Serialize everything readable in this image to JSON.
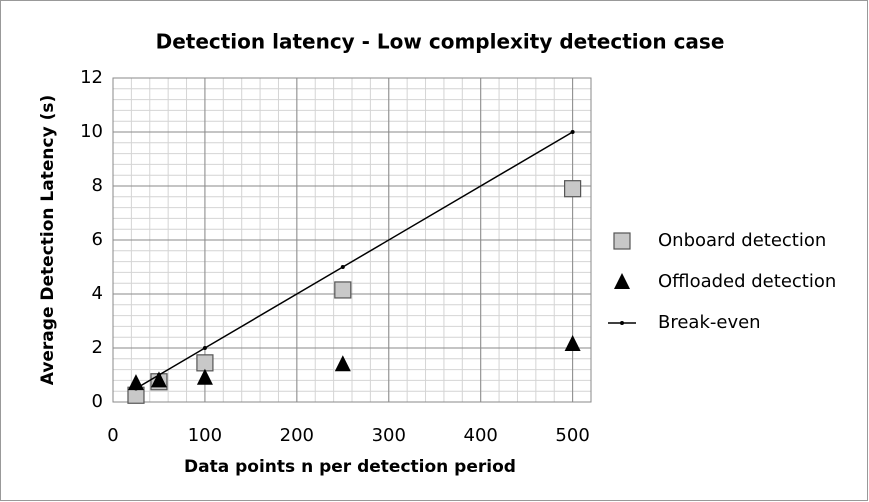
{
  "chart_data": {
    "type": "scatter",
    "title": "Detection latency - Low complexity detection case",
    "x_label": "Data points n per detection period",
    "y_label": "Average Detection Latency (s)",
    "x": [
      25,
      50,
      100,
      250,
      500
    ],
    "series": [
      {
        "name": "Onboard detection",
        "color": "#c8c8c8",
        "marker": "square",
        "values": [
          0.25,
          0.75,
          1.45,
          4.15,
          7.9
        ]
      },
      {
        "name": "Offloaded detection",
        "color": "#000000",
        "marker": "triangle",
        "values": [
          0.7,
          0.8,
          0.9,
          1.4,
          2.15
        ]
      },
      {
        "name": "Break-even",
        "color": "#000000",
        "marker": "line",
        "values": [
          0.5,
          1,
          2,
          5,
          10
        ]
      }
    ],
    "xlim": [
      0,
      520
    ],
    "xticks": [
      0,
      100,
      200,
      300,
      400,
      500
    ],
    "ylim": [
      0,
      12
    ],
    "yticks": [
      0,
      2,
      4,
      6,
      8,
      10,
      12
    ],
    "grid": true,
    "minor_grid": true,
    "legend": "right"
  }
}
